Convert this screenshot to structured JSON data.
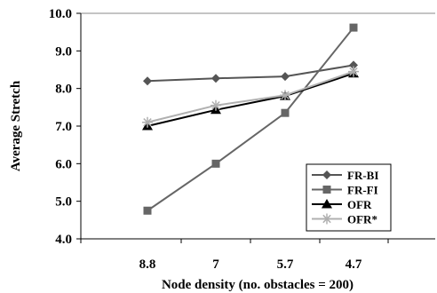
{
  "chart_data": {
    "type": "line",
    "title": "",
    "xlabel": "Node density (no. obstacles = 200)",
    "ylabel": "Average Stretch",
    "categories": [
      "8.8",
      "7",
      "5.7",
      "4.7"
    ],
    "ylim": [
      4.0,
      10.0
    ],
    "yticks": [
      "4.0",
      "5.0",
      "6.0",
      "7.0",
      "8.0",
      "9.0",
      "10.0"
    ],
    "grid": false,
    "legend_position": "bottom-right",
    "series": [
      {
        "name": "FR-BI",
        "values": [
          8.2,
          8.27,
          8.32,
          8.62
        ],
        "color": "#555555",
        "marker": "diamond"
      },
      {
        "name": "FR-FI",
        "values": [
          4.75,
          6.0,
          7.35,
          9.62
        ],
        "color": "#666666",
        "marker": "square"
      },
      {
        "name": "OFR",
        "values": [
          7.0,
          7.43,
          7.8,
          8.4
        ],
        "color": "#000000",
        "marker": "triangle"
      },
      {
        "name": "OFR*",
        "values": [
          7.1,
          7.55,
          7.82,
          8.45
        ],
        "color": "#b0b0b0",
        "marker": "asterisk"
      }
    ]
  }
}
